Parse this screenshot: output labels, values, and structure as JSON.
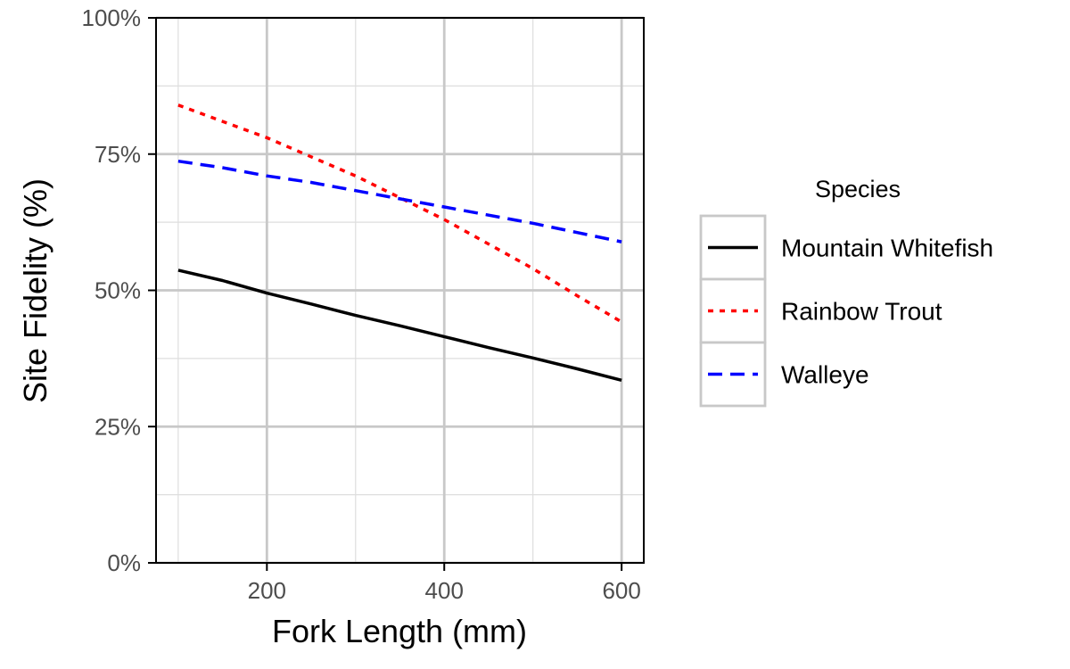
{
  "chart_data": {
    "type": "line",
    "title": "",
    "xlabel": "Fork Length (mm)",
    "ylabel": "Site Fidelity (%)",
    "xlim": [
      75,
      625
    ],
    "ylim": [
      0,
      100
    ],
    "x_ticks": [
      200,
      400,
      600
    ],
    "x_tick_labels": [
      "200",
      "400",
      "600"
    ],
    "y_ticks": [
      0,
      25,
      50,
      75,
      100
    ],
    "y_tick_labels": [
      "0%",
      "25%",
      "50%",
      "75%",
      "100%"
    ],
    "grid": true,
    "legend": {
      "title": "Species",
      "position": "right"
    },
    "series": [
      {
        "name": "Mountain Whitefish",
        "color": "#000000",
        "dash": "solid",
        "x": [
          100,
          150,
          200,
          250,
          300,
          350,
          400,
          450,
          500,
          550,
          600
        ],
        "y": [
          53.7,
          51.8,
          49.5,
          47.5,
          45.4,
          43.5,
          41.5,
          39.5,
          37.6,
          35.6,
          33.5
        ]
      },
      {
        "name": "Rainbow Trout",
        "color": "#ff0000",
        "dash": "dotted",
        "x": [
          100,
          150,
          200,
          250,
          300,
          350,
          400,
          450,
          500,
          550,
          600
        ],
        "y": [
          84.0,
          81.0,
          78.0,
          74.5,
          71.0,
          67.0,
          63.0,
          58.5,
          54.0,
          49.0,
          44.2
        ]
      },
      {
        "name": "Walleye",
        "color": "#0000ff",
        "dash": "dashed",
        "x": [
          100,
          150,
          200,
          250,
          300,
          350,
          400,
          450,
          500,
          550,
          600
        ],
        "y": [
          73.7,
          72.5,
          71.0,
          69.8,
          68.3,
          66.8,
          65.3,
          63.8,
          62.3,
          60.6,
          58.9
        ]
      }
    ]
  }
}
